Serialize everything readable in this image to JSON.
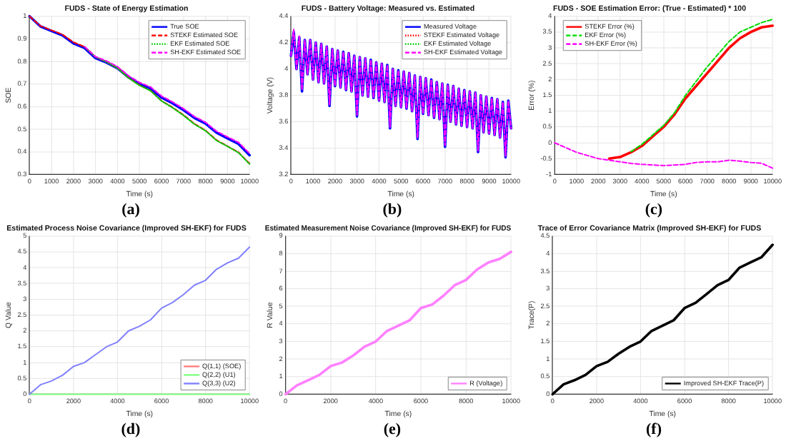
{
  "chart_data": [
    {
      "type": "line",
      "title": "FUDS - State of Energy Estimation",
      "xlabel": "Time (s)",
      "ylabel": "SOE",
      "annotations": [
        "(a)"
      ],
      "x": [
        0,
        500,
        1000,
        1500,
        2000,
        2500,
        3000,
        3500,
        4000,
        4500,
        5000,
        5500,
        6000,
        6500,
        7000,
        7500,
        8000,
        8500,
        9000,
        9500,
        10000
      ],
      "xlim": [
        0,
        10000
      ],
      "xticks": [
        0,
        1000,
        2000,
        3000,
        4000,
        5000,
        6000,
        7000,
        8000,
        9000,
        10000
      ],
      "ylim": [
        0.3,
        1
      ],
      "yticks": [
        0.3,
        0.4,
        0.5,
        0.6,
        0.7,
        0.8,
        0.9,
        1
      ],
      "grid": true,
      "legend": "top right",
      "marker": "none",
      "series": [
        {
          "name": "True SOE",
          "color": "#0000ff",
          "line_style": "solid",
          "values": [
            1,
            0.955,
            0.935,
            0.915,
            0.88,
            0.86,
            0.815,
            0.795,
            0.77,
            0.73,
            0.7,
            0.68,
            0.64,
            0.615,
            0.585,
            0.55,
            0.525,
            0.485,
            0.46,
            0.435,
            0.385
          ]
        },
        {
          "name": "STEKF Estimated SOE",
          "color": "#ff0000",
          "line_style": "dashed",
          "values": [
            1,
            0.957,
            0.938,
            0.919,
            0.885,
            0.865,
            0.82,
            0.798,
            0.771,
            0.728,
            0.695,
            0.671,
            0.626,
            0.597,
            0.563,
            0.524,
            0.495,
            0.452,
            0.425,
            0.398,
            0.348
          ]
        },
        {
          "name": "EKF Estimated SOE",
          "color": "#00cc00",
          "line_style": "dotted",
          "values": [
            null,
            null,
            null,
            null,
            null,
            0.865,
            0.82,
            0.798,
            0.77,
            0.727,
            0.694,
            0.67,
            0.625,
            0.595,
            0.561,
            0.522,
            0.493,
            0.45,
            0.424,
            0.396,
            0.346
          ]
        },
        {
          "name": "SH-EKF Estimated SOE",
          "color": "#ff00ff",
          "line_style": "dashed",
          "values": [
            null,
            null,
            null,
            null,
            null,
            0.866,
            0.821,
            0.802,
            0.777,
            0.737,
            0.707,
            0.687,
            0.647,
            0.621,
            0.591,
            0.556,
            0.531,
            0.491,
            0.466,
            0.442,
            0.393
          ]
        }
      ]
    },
    {
      "type": "line",
      "title": "FUDS - Battery Voltage: Measured vs. Estimated",
      "xlabel": "Time (s)",
      "ylabel": "Voltage (V)",
      "annotations": [
        "(b)"
      ],
      "x": [
        0,
        125,
        250,
        375,
        500,
        625,
        750,
        875,
        1000,
        1125,
        1250,
        1375,
        1500,
        1625,
        1750,
        1875,
        2000,
        2125,
        2250,
        2375,
        2500,
        2625,
        2750,
        2875,
        3000,
        3125,
        3250,
        3375,
        3500,
        3625,
        3750,
        3875,
        4000,
        4125,
        4250,
        4375,
        4500,
        4625,
        4750,
        4875,
        5000,
        5125,
        5250,
        5375,
        5500,
        5625,
        5750,
        5875,
        6000,
        6125,
        6250,
        6375,
        6500,
        6625,
        6750,
        6875,
        7000,
        7125,
        7250,
        7375,
        7500,
        7625,
        7750,
        7875,
        8000,
        8125,
        8250,
        8375,
        8500,
        8625,
        8750,
        8875,
        9000,
        9125,
        9250,
        9375,
        9500,
        9625,
        9750,
        9875,
        10000
      ],
      "xlim": [
        0,
        10000
      ],
      "xticks": [
        0,
        1000,
        2000,
        3000,
        4000,
        5000,
        6000,
        7000,
        8000,
        9000,
        10000
      ],
      "ylim": [
        3.2,
        4.4
      ],
      "yticks": [
        3.2,
        3.4,
        3.6,
        3.8,
        4,
        4.2,
        4.4
      ],
      "grid": true,
      "legend": "top right",
      "marker": "none",
      "series": [
        {
          "name": "Measured Voltage",
          "color": "#0000ff",
          "line_style": "solid",
          "values": [
            4.1,
            4.28,
            4,
            4.24,
            3.83,
            4.22,
            3.96,
            4.22,
            3.92,
            4.2,
            3.9,
            4.19,
            3.89,
            4.17,
            3.72,
            4.15,
            3.87,
            4.14,
            3.86,
            4.13,
            3.84,
            4.12,
            3.83,
            4.1,
            3.64,
            4.09,
            3.8,
            4.08,
            3.79,
            4.07,
            3.78,
            4.05,
            3.76,
            4.04,
            3.75,
            4.03,
            3.55,
            4,
            3.72,
            3.99,
            3.71,
            3.98,
            3.7,
            3.97,
            3.68,
            3.95,
            3.47,
            3.94,
            3.66,
            3.93,
            3.65,
            3.92,
            3.63,
            3.9,
            3.62,
            3.89,
            3.41,
            3.88,
            3.6,
            3.87,
            3.58,
            3.85,
            3.57,
            3.84,
            3.56,
            3.83,
            3.55,
            3.82,
            3.37,
            3.8,
            3.52,
            3.79,
            3.51,
            3.78,
            3.5,
            3.77,
            3.48,
            3.75,
            3.33,
            3.76,
            3.55
          ]
        },
        {
          "name": "STEKF Estimated Voltage",
          "color": "#ff0000",
          "line_style": "dotted",
          "values": [
            null,
            null,
            null,
            null,
            null,
            null,
            null,
            null,
            null,
            null,
            null,
            null,
            null,
            null,
            null,
            null,
            null,
            null,
            null,
            null,
            null,
            null,
            null,
            null,
            null,
            null,
            null,
            null,
            null,
            null,
            null,
            null,
            null,
            null,
            null,
            null,
            null,
            null,
            null,
            null,
            null,
            null,
            null,
            null,
            null,
            null,
            null,
            null,
            null,
            null,
            null,
            null,
            null,
            null,
            null,
            null,
            null,
            null,
            null,
            null,
            null,
            null,
            null,
            null,
            null,
            null,
            null,
            null,
            null,
            null,
            null,
            null,
            null,
            null,
            null,
            null,
            null,
            null,
            null,
            null,
            null
          ]
        },
        {
          "name": "EKF Estimated Voltage",
          "color": "#00cc00",
          "line_style": "dotted",
          "values": [
            null,
            null,
            null,
            null,
            null,
            null,
            null,
            null,
            null,
            null,
            null,
            null,
            null,
            null,
            null,
            null,
            null,
            null,
            null,
            null,
            null,
            null,
            null,
            null,
            null,
            null,
            null,
            null,
            null,
            null,
            null,
            null,
            null,
            null,
            null,
            null,
            null,
            null,
            null,
            null,
            null,
            null,
            null,
            null,
            null,
            null,
            null,
            null,
            null,
            null,
            null,
            null,
            null,
            null,
            null,
            null,
            null,
            null,
            null,
            null,
            null,
            null,
            null,
            null,
            null,
            null,
            null,
            null,
            null,
            null,
            null,
            null,
            null,
            null,
            null,
            null,
            null,
            null,
            null,
            null,
            null
          ]
        },
        {
          "name": "SH-EKF Estimated Voltage",
          "color": "#ff00ff",
          "line_style": "dashed",
          "values": [
            4.1,
            4.3,
            4,
            4.25,
            3.84,
            4.22,
            3.96,
            4.22,
            3.92,
            4.2,
            3.9,
            4.19,
            3.89,
            4.17,
            3.73,
            4.15,
            3.87,
            4.14,
            3.86,
            4.13,
            3.84,
            4.12,
            3.83,
            4.1,
            3.65,
            4.09,
            3.8,
            4.08,
            3.79,
            4.07,
            3.78,
            4.05,
            3.76,
            4.04,
            3.75,
            4.03,
            3.56,
            4,
            3.72,
            3.99,
            3.71,
            3.98,
            3.7,
            3.97,
            3.68,
            3.95,
            3.48,
            3.94,
            3.66,
            3.93,
            3.65,
            3.92,
            3.63,
            3.9,
            3.62,
            3.89,
            3.42,
            3.88,
            3.6,
            3.87,
            3.58,
            3.85,
            3.57,
            3.84,
            3.56,
            3.83,
            3.55,
            3.82,
            3.38,
            3.8,
            3.52,
            3.79,
            3.51,
            3.78,
            3.5,
            3.77,
            3.48,
            3.75,
            3.34,
            3.76,
            3.55
          ]
        }
      ]
    },
    {
      "type": "line",
      "title": "FUDS - SOE Estimation Error: (True - Estimated) * 100",
      "xlabel": "Time (s)",
      "ylabel": "Error (%)",
      "annotations": [
        "(c)"
      ],
      "x": [
        0,
        500,
        1000,
        1500,
        2000,
        2500,
        3000,
        3500,
        4000,
        4500,
        5000,
        5500,
        6000,
        6500,
        7000,
        7500,
        8000,
        8500,
        9000,
        9500,
        10000
      ],
      "xlim": [
        0,
        10000
      ],
      "xticks": [
        0,
        1000,
        2000,
        3000,
        4000,
        5000,
        6000,
        7000,
        8000,
        9000,
        10000
      ],
      "ylim": [
        -1,
        4
      ],
      "yticks": [
        -1,
        -0.5,
        0,
        0.5,
        1,
        1.5,
        2,
        2.5,
        3,
        3.5,
        4
      ],
      "grid": true,
      "legend": "top left",
      "marker": "none",
      "series": [
        {
          "name": "STEKF Error (%)",
          "color": "#ff0000",
          "line_style": "solid",
          "values": [
            null,
            null,
            null,
            null,
            null,
            -0.5,
            -0.45,
            -0.3,
            -0.1,
            0.2,
            0.5,
            0.9,
            1.4,
            1.8,
            2.2,
            2.6,
            3,
            3.3,
            3.5,
            3.65,
            3.7
          ]
        },
        {
          "name": "EKF Error (%)",
          "color": "#00dd00",
          "line_style": "dashed",
          "values": [
            null,
            null,
            null,
            null,
            null,
            null,
            null,
            -0.28,
            -0.05,
            0.25,
            0.55,
            0.95,
            1.5,
            1.95,
            2.4,
            2.8,
            3.2,
            3.5,
            3.65,
            3.8,
            3.9
          ]
        },
        {
          "name": "SH-EKF Error (%)",
          "color": "#ff00ff",
          "line_style": "dashed",
          "values": [
            0,
            -0.15,
            -0.3,
            -0.4,
            -0.5,
            -0.55,
            -0.6,
            -0.65,
            -0.68,
            -0.7,
            -0.72,
            -0.7,
            -0.68,
            -0.62,
            -0.6,
            -0.6,
            -0.55,
            -0.58,
            -0.62,
            -0.65,
            -0.8
          ]
        }
      ]
    },
    {
      "type": "line",
      "title": "Estimated Process Noise Covariance (Improved SH-EKF) for FUDS",
      "xlabel": "Time (s)",
      "ylabel": "Q Value",
      "annotations": [
        "(d)"
      ],
      "x": [
        0,
        500,
        1000,
        1500,
        2000,
        2500,
        3000,
        3500,
        4000,
        4500,
        5000,
        5500,
        6000,
        6500,
        7000,
        7500,
        8000,
        8500,
        9000,
        9500,
        10000
      ],
      "xlim": [
        0,
        10000
      ],
      "xticks": [
        0,
        2000,
        4000,
        6000,
        8000,
        10000
      ],
      "ylim": [
        0,
        5
      ],
      "yticks": [
        0,
        0.5,
        1,
        1.5,
        2,
        2.5,
        3,
        3.5,
        4,
        4.5,
        5
      ],
      "grid": true,
      "legend": "bottom right",
      "marker": "none",
      "series": [
        {
          "name": "Q(1,1) (SOE)",
          "color": "#ff8080",
          "line_style": "solid",
          "values": [
            null,
            null,
            null,
            null,
            null,
            null,
            null,
            null,
            null,
            null,
            null,
            null,
            null,
            null,
            null,
            null,
            null,
            null,
            null,
            null,
            null
          ]
        },
        {
          "name": "Q(2,2) (U1)",
          "color": "#80ff80",
          "line_style": "solid",
          "values": [
            0,
            0,
            0,
            0,
            0,
            0,
            0,
            0,
            0,
            0,
            0,
            0,
            0,
            0,
            0,
            0,
            0,
            0,
            0,
            0,
            0
          ]
        },
        {
          "name": "Q(3,3) (U2)",
          "color": "#8080ff",
          "line_style": "solid",
          "values": [
            0,
            0.3,
            0.42,
            0.6,
            0.88,
            1,
            1.25,
            1.5,
            1.65,
            2,
            2.15,
            2.35,
            2.72,
            2.9,
            3.15,
            3.45,
            3.6,
            3.95,
            4.15,
            4.3,
            4.65
          ]
        }
      ]
    },
    {
      "type": "line",
      "title": "Estimated Measurement Noise Covariance (Improved SH-EKF) for FUDS",
      "xlabel": "Time (s)",
      "ylabel": "R Value",
      "annotations": [
        "(e)"
      ],
      "x": [
        0,
        500,
        1000,
        1500,
        2000,
        2500,
        3000,
        3500,
        4000,
        4500,
        5000,
        5500,
        6000,
        6500,
        7000,
        7500,
        8000,
        8500,
        9000,
        9500,
        10000
      ],
      "xlim": [
        0,
        10000
      ],
      "xticks": [
        0,
        2000,
        4000,
        6000,
        8000,
        10000
      ],
      "ylim": [
        0,
        9
      ],
      "yticks": [
        0,
        1,
        2,
        3,
        4,
        5,
        6,
        7,
        8,
        9
      ],
      "grid": true,
      "legend": "bottom right",
      "marker": "none",
      "series": [
        {
          "name": "R (Voltage)",
          "color": "#ff80ff",
          "line_style": "solid",
          "values": [
            0,
            0.5,
            0.8,
            1.1,
            1.6,
            1.8,
            2.2,
            2.7,
            3,
            3.6,
            3.9,
            4.2,
            4.9,
            5.1,
            5.6,
            6.2,
            6.5,
            7.1,
            7.5,
            7.7,
            8.1
          ]
        }
      ]
    },
    {
      "type": "line",
      "title": "Trace of Error Covariance Matrix (Improved SH-EKF) for FUDS",
      "xlabel": "Time (s)",
      "ylabel": "Trace(P)",
      "annotations": [
        "(f)"
      ],
      "x": [
        0,
        500,
        1000,
        1500,
        2000,
        2500,
        3000,
        3500,
        4000,
        4500,
        5000,
        5500,
        6000,
        6500,
        7000,
        7500,
        8000,
        8500,
        9000,
        9500,
        10000
      ],
      "xlim": [
        0,
        10000
      ],
      "xticks": [
        0,
        2000,
        4000,
        6000,
        8000,
        10000
      ],
      "ylim": [
        0,
        4.5
      ],
      "yticks": [
        0,
        0.5,
        1,
        1.5,
        2,
        2.5,
        3,
        3.5,
        4,
        4.5
      ],
      "grid": true,
      "legend": "bottom right",
      "marker": "none",
      "series": [
        {
          "name": "Improved SH-EKF Trace(P)",
          "color": "#000000",
          "line_style": "solid",
          "values": [
            0,
            0.28,
            0.4,
            0.55,
            0.8,
            0.92,
            1.15,
            1.35,
            1.5,
            1.8,
            1.95,
            2.1,
            2.45,
            2.6,
            2.85,
            3.1,
            3.25,
            3.6,
            3.75,
            3.9,
            4.25
          ]
        }
      ]
    }
  ]
}
